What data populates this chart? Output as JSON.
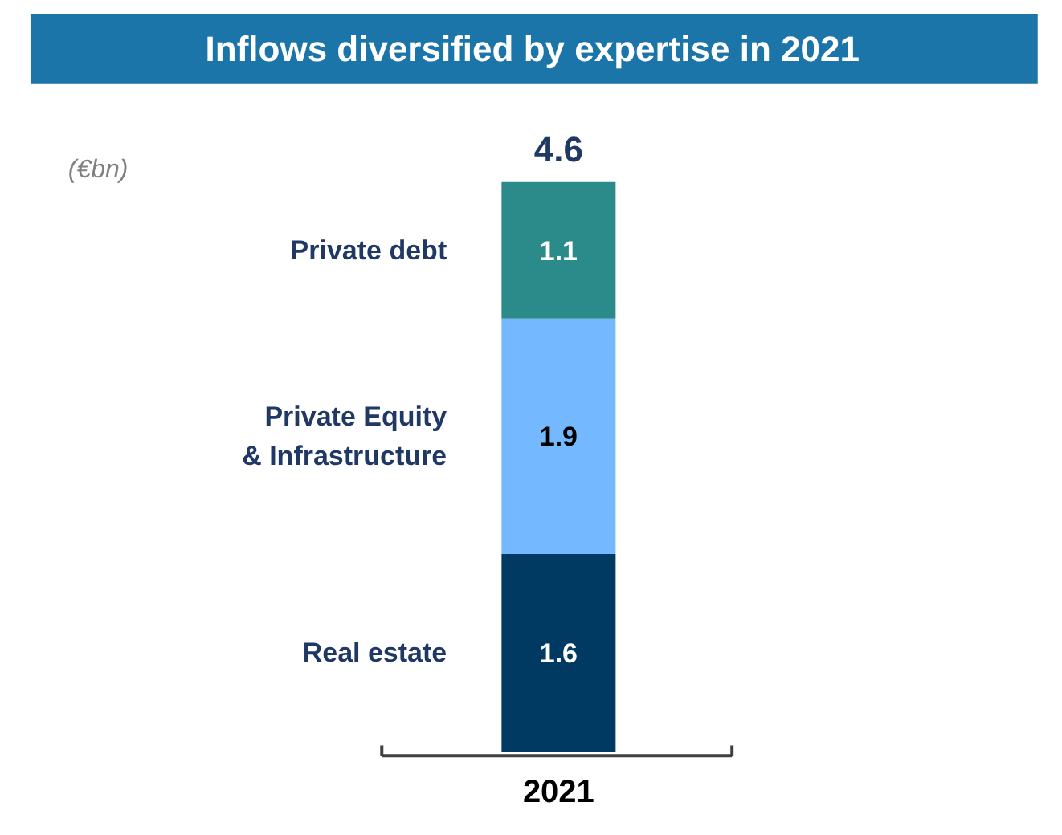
{
  "chart_data": {
    "type": "bar",
    "title": "Inflows diversified by expertise in 2021",
    "annotations": [
      "(€bn)"
    ],
    "categories": [
      "2021"
    ],
    "stacked": true,
    "data_labels": true,
    "totals": [
      "4.6"
    ],
    "legend": false,
    "grid": false,
    "series": [
      {
        "name": "Real estate",
        "color": "#003a63",
        "values": [
          1.6
        ]
      },
      {
        "name": "Private Equity & Infrastructure",
        "color": "#74b9ff",
        "values": [
          1.9
        ]
      },
      {
        "name": "Private debt",
        "color": "#2b8a8a",
        "values": [
          1.1
        ]
      }
    ]
  }
}
